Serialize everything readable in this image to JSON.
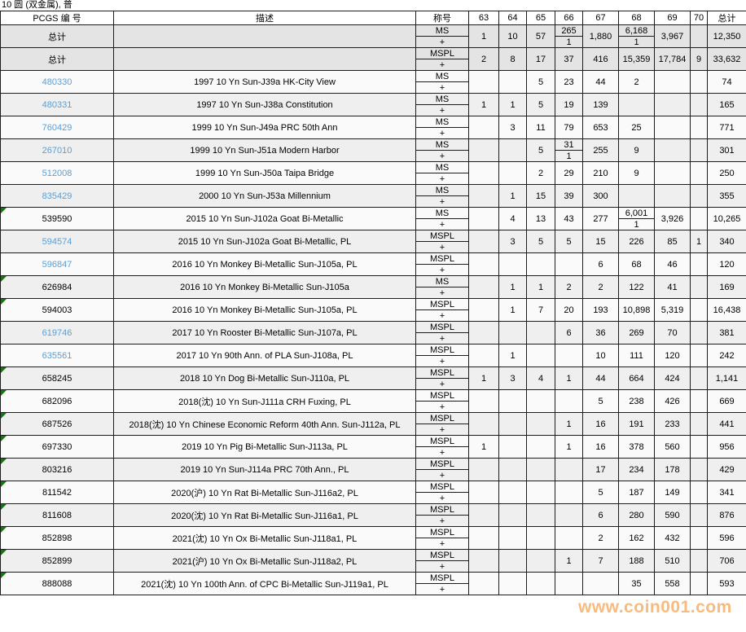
{
  "title": "10 圆 (双金属), 普",
  "watermark": "www.coin001.com",
  "colors": {
    "link_blue": "#56a0dc",
    "flag_green": "#077d07",
    "watermark_orange": "#f79a3d",
    "total_row_bg": "#e4e4e4",
    "row_bg_light": "#fafafa",
    "row_bg_dark": "#efefef"
  },
  "table": {
    "columns": [
      "PCGS 编 号",
      "描述",
      "称号",
      "63",
      "64",
      "65",
      "66",
      "67",
      "68",
      "69",
      "70",
      "总计"
    ],
    "plus_label": "+",
    "rows": [
      {
        "pcgs": "总计",
        "desc": "",
        "desig": "MS",
        "kind": "total",
        "link": false,
        "flag": false,
        "cells": [
          "1",
          "10",
          "57",
          {
            "t": "265",
            "b": "1"
          },
          "1,880",
          {
            "t": "6,168",
            "b": "1"
          },
          "3,967",
          "",
          "12,350"
        ]
      },
      {
        "pcgs": "总计",
        "desc": "",
        "desig": "MSPL",
        "kind": "total",
        "link": false,
        "flag": false,
        "cells": [
          "2",
          "8",
          "17",
          "37",
          "416",
          "15,359",
          "17,784",
          "9",
          "33,632"
        ]
      },
      {
        "pcgs": "480330",
        "desc": "1997 10 Yn Sun-J39a HK-City View",
        "desig": "MS",
        "kind": "coin",
        "link": true,
        "flag": false,
        "cells": [
          "",
          "",
          "5",
          "23",
          "44",
          "2",
          "",
          "",
          "74"
        ]
      },
      {
        "pcgs": "480331",
        "desc": "1997 10 Yn Sun-J38a Constitution",
        "desig": "MS",
        "kind": "coin",
        "link": true,
        "flag": false,
        "cells": [
          "1",
          "1",
          "5",
          "19",
          "139",
          "",
          "",
          "",
          "165"
        ]
      },
      {
        "pcgs": "760429",
        "desc": "1999 10 Yn Sun-J49a PRC 50th Ann",
        "desig": "MS",
        "kind": "coin",
        "link": true,
        "flag": false,
        "cells": [
          "",
          "3",
          "11",
          "79",
          "653",
          "25",
          "",
          "",
          "771"
        ]
      },
      {
        "pcgs": "267010",
        "desc": "1999 10 Yn Sun-J51a Modern Harbor",
        "desig": "MS",
        "kind": "coin",
        "link": true,
        "flag": false,
        "cells": [
          "",
          "",
          "5",
          {
            "t": "31",
            "b": "1"
          },
          "255",
          "9",
          "",
          "",
          "301"
        ]
      },
      {
        "pcgs": "512008",
        "desc": "1999 10 Yn Sun-J50a Taipa Bridge",
        "desig": "MS",
        "kind": "coin",
        "link": true,
        "flag": false,
        "cells": [
          "",
          "",
          "2",
          "29",
          "210",
          "9",
          "",
          "",
          "250"
        ]
      },
      {
        "pcgs": "835429",
        "desc": "2000 10 Yn Sun-J53a Millennium",
        "desig": "MS",
        "kind": "coin",
        "link": true,
        "flag": false,
        "cells": [
          "",
          "1",
          "15",
          "39",
          "300",
          "",
          "",
          "",
          "355"
        ]
      },
      {
        "pcgs": "539590",
        "desc": "2015 10 Yn Sun-J102a Goat Bi-Metallic",
        "desig": "MS",
        "kind": "coin",
        "link": false,
        "flag": true,
        "cells": [
          "",
          "4",
          "13",
          "43",
          "277",
          {
            "t": "6,001",
            "b": "1"
          },
          "3,926",
          "",
          "10,265"
        ]
      },
      {
        "pcgs": "594574",
        "desc": "2015 10 Yn Sun-J102a Goat Bi-Metallic, PL",
        "desig": "MSPL",
        "kind": "coin",
        "link": true,
        "flag": false,
        "cells": [
          "",
          "3",
          "5",
          "5",
          "15",
          "226",
          "85",
          "1",
          "340"
        ]
      },
      {
        "pcgs": "596847",
        "desc": "2016 10 Yn Monkey Bi-Metallic Sun-J105a, PL",
        "desig": "MSPL",
        "kind": "coin",
        "link": true,
        "flag": false,
        "cells": [
          "",
          "",
          "",
          "",
          "6",
          "68",
          "46",
          "",
          "120"
        ]
      },
      {
        "pcgs": "626984",
        "desc": "2016 10 Yn Monkey Bi-Metallic Sun-J105a",
        "desig": "MS",
        "kind": "coin",
        "link": false,
        "flag": true,
        "cells": [
          "",
          "1",
          "1",
          "2",
          "2",
          "122",
          "41",
          "",
          "169"
        ]
      },
      {
        "pcgs": "594003",
        "desc": "2016 10 Yn Monkey Bi-Metallic Sun-J105a, PL",
        "desig": "MSPL",
        "kind": "coin",
        "link": false,
        "flag": true,
        "cells": [
          "",
          "1",
          "7",
          "20",
          "193",
          "10,898",
          "5,319",
          "",
          "16,438"
        ]
      },
      {
        "pcgs": "619746",
        "desc": "2017 10 Yn Rooster Bi-Metallic Sun-J107a, PL",
        "desig": "MSPL",
        "kind": "coin",
        "link": true,
        "flag": false,
        "cells": [
          "",
          "",
          "",
          "6",
          "36",
          "269",
          "70",
          "",
          "381"
        ]
      },
      {
        "pcgs": "635561",
        "desc": "2017 10 Yn 90th Ann. of PLA Sun-J108a, PL",
        "desig": "MSPL",
        "kind": "coin",
        "link": true,
        "flag": false,
        "cells": [
          "",
          "1",
          "",
          "",
          "10",
          "111",
          "120",
          "",
          "242"
        ]
      },
      {
        "pcgs": "658245",
        "desc": "2018 10 Yn Dog Bi-Metallic Sun-J110a, PL",
        "desig": "MSPL",
        "kind": "coin",
        "link": false,
        "flag": true,
        "cells": [
          "1",
          "3",
          "4",
          "1",
          "44",
          "664",
          "424",
          "",
          "1,141"
        ]
      },
      {
        "pcgs": "682096",
        "desc": "2018(沈) 10 Yn Sun-J111a CRH Fuxing, PL",
        "desig": "MSPL",
        "kind": "coin",
        "link": false,
        "flag": true,
        "cells": [
          "",
          "",
          "",
          "",
          "5",
          "238",
          "426",
          "",
          "669"
        ]
      },
      {
        "pcgs": "687526",
        "desc": "2018(沈) 10 Yn Chinese Economic Reform 40th Ann. Sun-J112a, PL",
        "desig": "MSPL",
        "kind": "coin",
        "link": false,
        "flag": true,
        "cells": [
          "",
          "",
          "",
          "1",
          "16",
          "191",
          "233",
          "",
          "441"
        ]
      },
      {
        "pcgs": "697330",
        "desc": "2019 10 Yn Pig Bi-Metallic Sun-J113a, PL",
        "desig": "MSPL",
        "kind": "coin",
        "link": false,
        "flag": true,
        "cells": [
          "1",
          "",
          "",
          "1",
          "16",
          "378",
          "560",
          "",
          "956"
        ]
      },
      {
        "pcgs": "803216",
        "desc": "2019 10 Yn Sun-J114a PRC 70th Ann., PL",
        "desig": "MSPL",
        "kind": "coin",
        "link": false,
        "flag": true,
        "cells": [
          "",
          "",
          "",
          "",
          "17",
          "234",
          "178",
          "",
          "429"
        ]
      },
      {
        "pcgs": "811542",
        "desc": "2020(沪) 10 Yn Rat Bi-Metallic Sun-J116a2, PL",
        "desig": "MSPL",
        "kind": "coin",
        "link": false,
        "flag": true,
        "cells": [
          "",
          "",
          "",
          "",
          "5",
          "187",
          "149",
          "",
          "341"
        ]
      },
      {
        "pcgs": "811608",
        "desc": "2020(沈) 10 Yn Rat Bi-Metallic Sun-J116a1, PL",
        "desig": "MSPL",
        "kind": "coin",
        "link": false,
        "flag": true,
        "cells": [
          "",
          "",
          "",
          "",
          "6",
          "280",
          "590",
          "",
          "876"
        ]
      },
      {
        "pcgs": "852898",
        "desc": "2021(沈) 10 Yn Ox Bi-Metallic Sun-J118a1, PL",
        "desig": "MSPL",
        "kind": "coin",
        "link": false,
        "flag": true,
        "cells": [
          "",
          "",
          "",
          "",
          "2",
          "162",
          "432",
          "",
          "596"
        ]
      },
      {
        "pcgs": "852899",
        "desc": "2021(沪) 10 Yn Ox Bi-Metallic Sun-J118a2, PL",
        "desig": "MSPL",
        "kind": "coin",
        "link": false,
        "flag": true,
        "cells": [
          "",
          "",
          "",
          "1",
          "7",
          "188",
          "510",
          "",
          "706"
        ]
      },
      {
        "pcgs": "888088",
        "desc": "2021(沈) 10 Yn 100th Ann. of CPC Bi-Metallic Sun-J119a1, PL",
        "desig": "MSPL",
        "kind": "coin",
        "link": false,
        "flag": true,
        "cells": [
          "",
          "",
          "",
          "",
          "",
          "35",
          "558",
          "",
          "593"
        ]
      }
    ]
  }
}
